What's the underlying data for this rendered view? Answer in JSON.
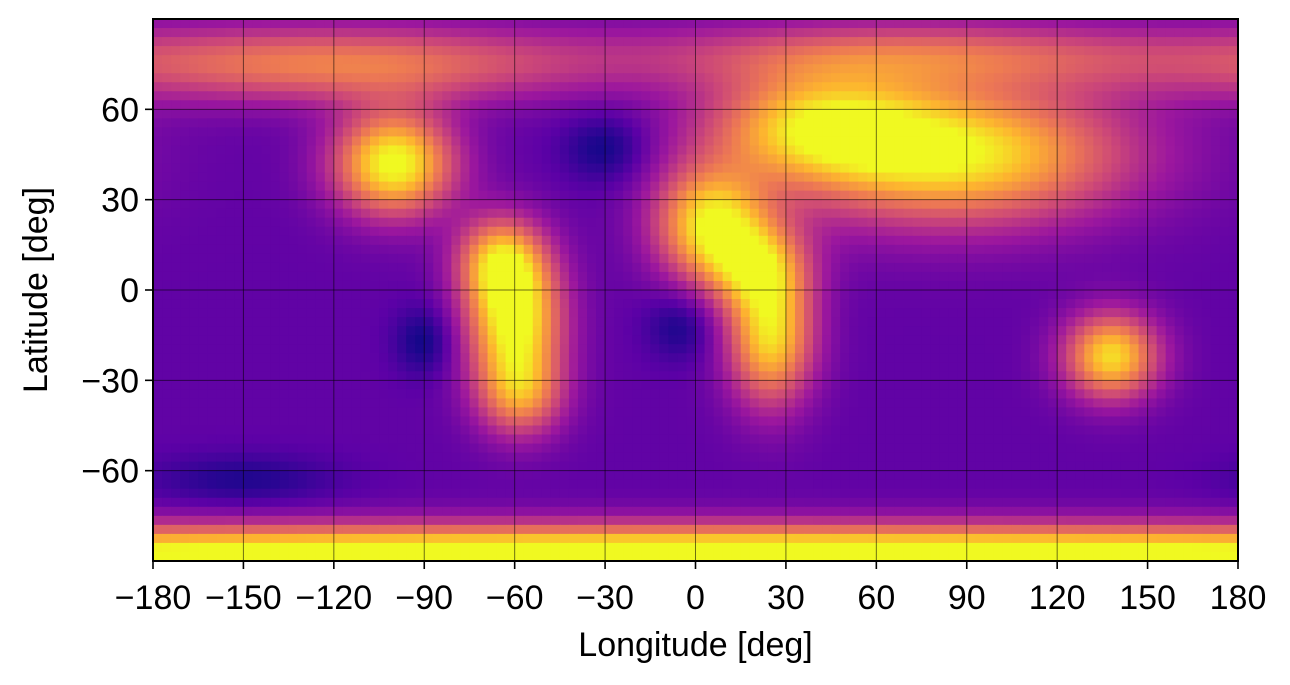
{
  "chart_data": {
    "type": "heatmap",
    "title": "",
    "xlabel": "Longitude [deg]",
    "ylabel": "Latitude [deg]",
    "xlim": [
      -180,
      180
    ],
    "ylim": [
      -90,
      90
    ],
    "xticks": [
      -180,
      -150,
      -120,
      -90,
      -60,
      -30,
      0,
      30,
      60,
      90,
      120,
      150,
      180
    ],
    "yticks": [
      -60,
      -30,
      0,
      30,
      60
    ],
    "xtick_labels": [
      "−180",
      "−150",
      "−120",
      "−90",
      "−60",
      "−30",
      "0",
      "30",
      "60",
      "90",
      "120",
      "150",
      "180"
    ],
    "ytick_labels": [
      "−60",
      "−30",
      "0",
      "30",
      "60"
    ],
    "grid": true,
    "colormap": "plasma",
    "colors": [
      "#0d0887",
      "#5c01a6",
      "#9c179e",
      "#cc4778",
      "#ed7953",
      "#fdb42f",
      "#f0f921"
    ],
    "background_level": 0.18,
    "features": [
      {
        "lon": -100,
        "lat": 42,
        "amp": 0.85,
        "slon": 14,
        "slat": 12
      },
      {
        "lon": -120,
        "lat": 75,
        "amp": 0.5,
        "slon": 60,
        "slat": 9
      },
      {
        "lon": -60,
        "lat": -10,
        "amp": 0.85,
        "slon": 11,
        "slat": 16
      },
      {
        "lon": -65,
        "lat": 10,
        "amp": 0.55,
        "slon": 10,
        "slat": 10
      },
      {
        "lon": -58,
        "lat": -35,
        "amp": 0.45,
        "slon": 10,
        "slat": 10
      },
      {
        "lon": 5,
        "lat": 22,
        "amp": 0.75,
        "slon": 13,
        "slat": 13
      },
      {
        "lon": 25,
        "lat": -15,
        "amp": 0.75,
        "slon": 10,
        "slat": 16
      },
      {
        "lon": 20,
        "lat": 8,
        "amp": 0.5,
        "slon": 12,
        "slat": 10
      },
      {
        "lon": 85,
        "lat": 45,
        "amp": 0.8,
        "slon": 40,
        "slat": 16
      },
      {
        "lon": 40,
        "lat": 55,
        "amp": 0.55,
        "slon": 25,
        "slat": 12
      },
      {
        "lon": 70,
        "lat": 78,
        "amp": 0.4,
        "slon": 60,
        "slat": 8
      },
      {
        "lon": 138,
        "lat": -22,
        "amp": 0.75,
        "slon": 11,
        "slat": 10
      },
      {
        "lon": 0,
        "lat": -88,
        "amp": 0.95,
        "slon": 400,
        "slat": 7
      },
      {
        "lon": -30,
        "lat": 47,
        "amp": -0.18,
        "slon": 10,
        "slat": 8
      },
      {
        "lon": -90,
        "lat": -17,
        "amp": -0.18,
        "slon": 7,
        "slat": 8
      },
      {
        "lon": -5,
        "lat": -12,
        "amp": -0.16,
        "slon": 8,
        "slat": 8
      },
      {
        "lon": -150,
        "lat": -63,
        "amp": -0.14,
        "slon": 22,
        "slat": 6
      }
    ]
  }
}
